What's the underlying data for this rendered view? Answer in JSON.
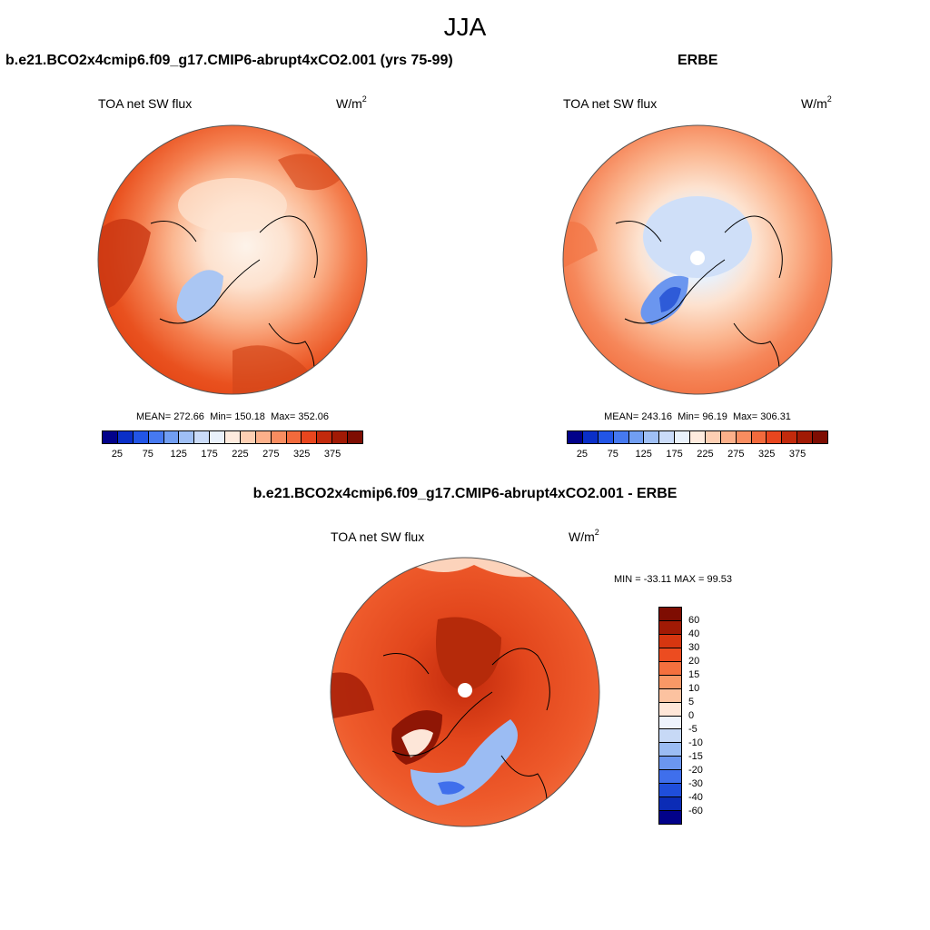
{
  "season": "JJA",
  "panels": {
    "model": {
      "title": "b.e21.BCO2x4cmip6.f09_g17.CMIP6-abrupt4xCO2.001 (yrs 75-99)",
      "variable": "TOA net SW flux",
      "units": "W/m",
      "units_sup": "2",
      "mean": "272.66",
      "min": "150.18",
      "max": "352.06"
    },
    "obs": {
      "title": "ERBE",
      "variable": "TOA net SW flux",
      "units": "W/m",
      "units_sup": "2",
      "mean": "243.16",
      "min": "96.19",
      "max": "306.31"
    },
    "diff": {
      "title": "b.e21.BCO2x4cmip6.f09_g17.CMIP6-abrupt4xCO2.001 - ERBE",
      "variable": "TOA net SW flux",
      "units": "W/m",
      "units_sup": "2",
      "minmax": "MIN = -33.11 MAX =  99.53"
    }
  },
  "labels": {
    "mean_prefix": "MEAN=",
    "min_prefix": "Min=",
    "max_prefix": "Max="
  },
  "colorbar_fields": {
    "ticks": [
      "25",
      "75",
      "125",
      "175",
      "225",
      "275",
      "325",
      "375"
    ],
    "colors": [
      "#02028a",
      "#0a2fc8",
      "#2255e6",
      "#4679f0",
      "#719ef2",
      "#9fbff5",
      "#cadbf8",
      "#e9f1fb",
      "#feebde",
      "#fdcfb3",
      "#fcb08a",
      "#f98d60",
      "#f26a3c",
      "#e8461e",
      "#c22a0c",
      "#a11a05",
      "#7e0d02"
    ]
  },
  "colorbar_diff": {
    "ticks": [
      "60",
      "40",
      "30",
      "20",
      "15",
      "10",
      "5",
      "0",
      "-5",
      "-10",
      "-15",
      "-20",
      "-30",
      "-40",
      "-60"
    ],
    "colors": [
      "#7e0d02",
      "#a11a05",
      "#d63610",
      "#ec4c20",
      "#f4703e",
      "#f99866",
      "#fcc2a0",
      "#fee6d8",
      "#eef3fc",
      "#c7d9f6",
      "#9bbcf3",
      "#6b96ef",
      "#3f6fec",
      "#1f4edb",
      "#0b2cb6",
      "#02028a"
    ]
  }
}
